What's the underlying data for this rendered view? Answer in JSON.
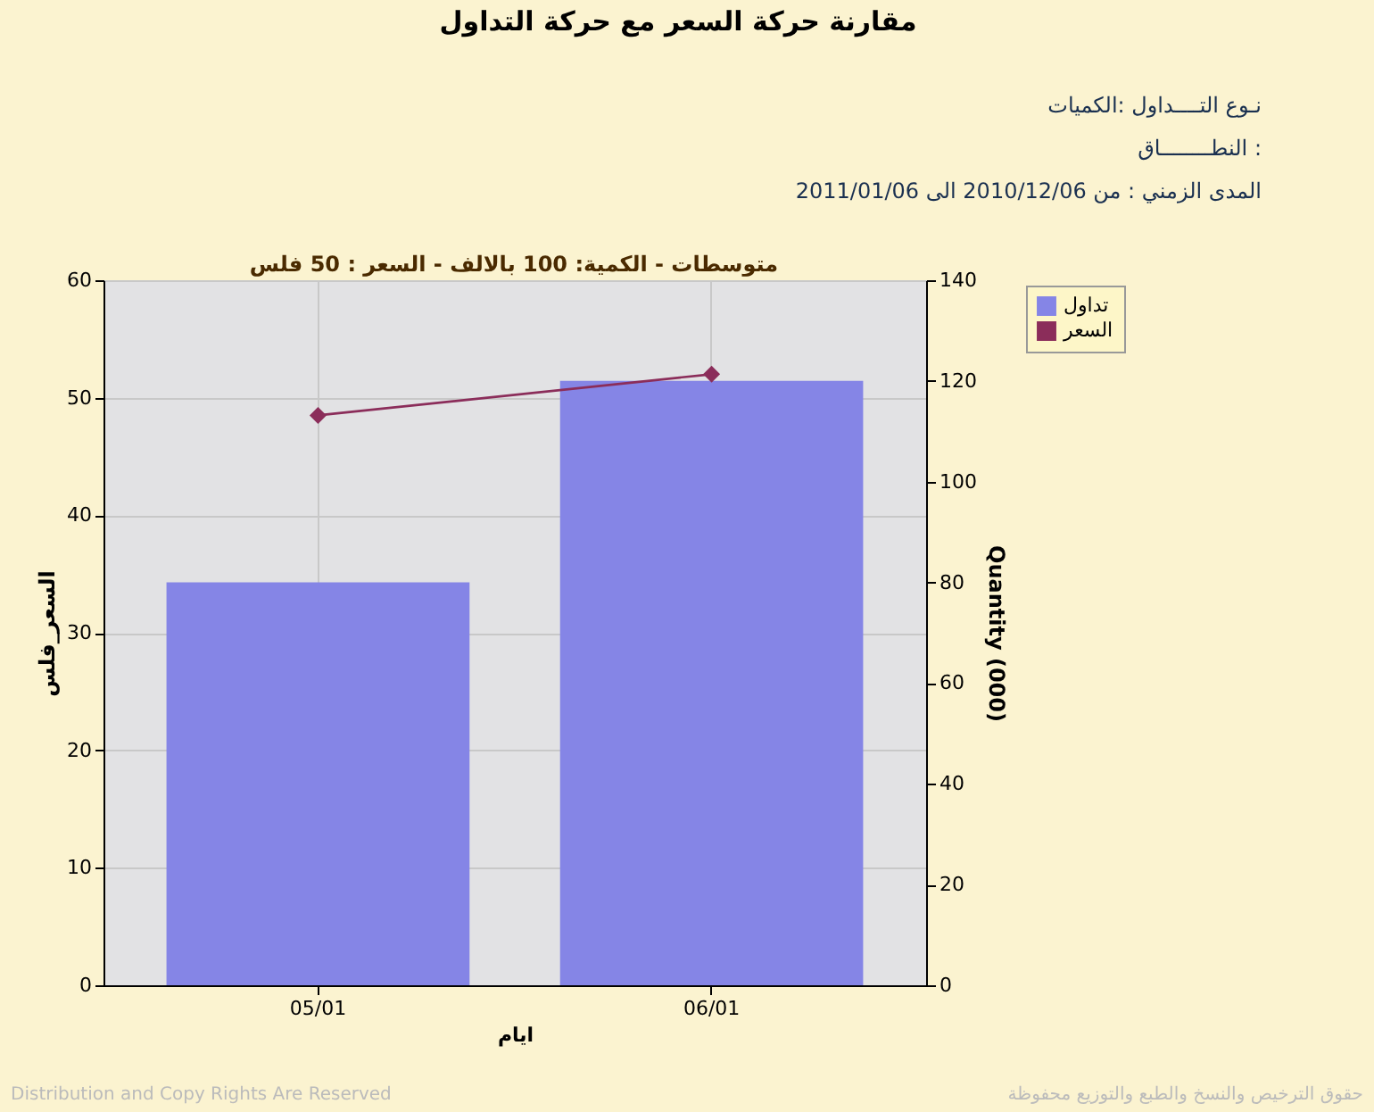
{
  "chart_data": {
    "type": "bar",
    "title": "مقارنة حركة السعر مع حركة التداول",
    "subtitle": [
      "نـوع التــــداول :الكميات",
      "النطــــــــاق :",
      "المدى الزمني :  من 2010/12/06 الى 2011/01/06"
    ],
    "categories": [
      "05/01",
      "06/01"
    ],
    "series": [
      {
        "name": "تداول",
        "type": "bar",
        "axis": "y2",
        "color": "#8585e6",
        "values": [
          80,
          120
        ]
      },
      {
        "name": "السعر",
        "type": "line",
        "color": "#8b2d5a",
        "marker": "diamond",
        "values": [
          48.5,
          52
        ]
      }
    ],
    "xlabel": "ايام",
    "ylabel": "السعر_فلس",
    "y2label": "Quantity (000)",
    "ylim": [
      0,
      60
    ],
    "yticks": [
      0,
      10,
      20,
      30,
      40,
      50,
      60
    ],
    "y2lim": [
      0,
      140
    ],
    "y2ticks": [
      0,
      20,
      40,
      60,
      80,
      100,
      120,
      140
    ],
    "grid": true,
    "legend": "top right",
    "annotations": [
      "متوسطات - الكمية: 100 بالالف  -  السعر : 50 فلس",
      "Distribution and Copy Rights Are Reserved",
      "حقوق الترخيص والنسخ والطبع والتوزيع محفوظة"
    ]
  }
}
